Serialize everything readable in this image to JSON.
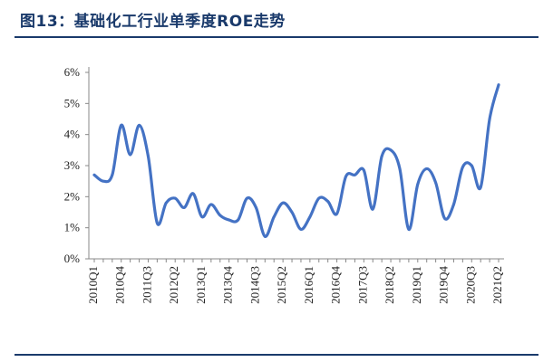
{
  "header": {
    "title": "图13：基础化工行业单季度ROE走势"
  },
  "colors": {
    "title": "#1a3a6b",
    "line": "#4472c4",
    "axis": "#888888",
    "text": "#222222"
  },
  "chart_data": {
    "type": "line",
    "title": "图13：基础化工行业单季度ROE走势",
    "xlabel": "",
    "ylabel": "",
    "ylim": [
      0,
      6
    ],
    "y_ticks": [
      "0%",
      "1%",
      "2%",
      "3%",
      "4%",
      "5%",
      "6%"
    ],
    "x_tick_labels": [
      "2010Q1",
      "2010Q4",
      "2011Q3",
      "2012Q2",
      "2013Q1",
      "2013Q4",
      "2014Q3",
      "2015Q2",
      "2016Q1",
      "2016Q4",
      "2017Q3",
      "2018Q2",
      "2019Q1",
      "2019Q4",
      "2020Q3",
      "2021Q2"
    ],
    "grid": false,
    "legend": "none",
    "x": [
      "2010Q1",
      "2010Q2",
      "2010Q3",
      "2010Q4",
      "2011Q1",
      "2011Q2",
      "2011Q3",
      "2011Q4",
      "2012Q1",
      "2012Q2",
      "2012Q3",
      "2012Q4",
      "2013Q1",
      "2013Q2",
      "2013Q3",
      "2013Q4",
      "2014Q1",
      "2014Q2",
      "2014Q3",
      "2014Q4",
      "2015Q1",
      "2015Q2",
      "2015Q3",
      "2015Q4",
      "2016Q1",
      "2016Q2",
      "2016Q3",
      "2016Q4",
      "2017Q1",
      "2017Q2",
      "2017Q3",
      "2017Q4",
      "2018Q1",
      "2018Q2",
      "2018Q3",
      "2018Q4",
      "2019Q1",
      "2019Q2",
      "2019Q3",
      "2019Q4",
      "2020Q1",
      "2020Q2",
      "2020Q3",
      "2020Q4",
      "2021Q1",
      "2021Q2"
    ],
    "series": [
      {
        "values": [
          2.7,
          2.5,
          2.7,
          4.3,
          3.35,
          4.3,
          3.3,
          1.15,
          1.8,
          1.95,
          1.65,
          2.1,
          1.35,
          1.75,
          1.4,
          1.25,
          1.25,
          1.95,
          1.65,
          0.72,
          1.35,
          1.8,
          1.5,
          0.95,
          1.35,
          1.95,
          1.85,
          1.45,
          2.65,
          2.7,
          2.85,
          1.6,
          3.3,
          3.5,
          2.9,
          0.95,
          2.4,
          2.9,
          2.45,
          1.3,
          1.75,
          2.95,
          3.0,
          2.3,
          4.5,
          5.6
        ]
      }
    ]
  }
}
